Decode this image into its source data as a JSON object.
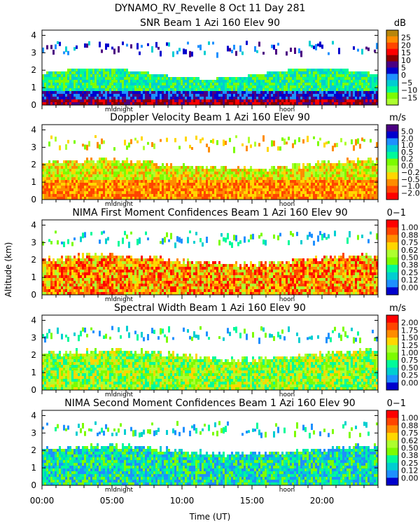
{
  "header": {
    "line1": "DYNAMO_RV_Revelle    8 Oct 11 Day 281"
  },
  "chart_data": {
    "type": "heatmap",
    "ylabel": "Altitude (km)",
    "xlabel": "Time (UT)",
    "x_ticks": [
      "00:00",
      "05:00",
      "10:00",
      "15:00",
      "20:00"
    ],
    "x_tick_values": [
      0,
      5,
      10,
      15,
      20
    ],
    "xlim": [
      0,
      24
    ],
    "day_markers": [
      {
        "label": "midnight",
        "hour": 5.5
      },
      {
        "label": "noon",
        "hour": 17.5
      }
    ],
    "panels": [
      {
        "title": "SNR Beam 1 Azi 160 Elev 90",
        "unit": "dB",
        "ylim": [
          0,
          4.3
        ],
        "y_ticks": [
          0,
          1,
          2,
          3,
          4
        ],
        "colorbar": [
          "25",
          "20",
          "15",
          "10",
          "5",
          "0",
          "−5",
          "−10",
          "−15"
        ],
        "colors": [
          "#b8860b",
          "#ff8c00",
          "#ff4500",
          "#ff0000",
          "#8b0000",
          "#4b0082",
          "#0000cd",
          "#1e90ff",
          "#00ced1",
          "#00fa9a",
          "#7cfc00",
          "#adff2f"
        ]
      },
      {
        "title": "Doppler Velocity Beam 1 Azi 160 Elev 90",
        "unit": "m/s",
        "ylim": [
          0,
          4.3
        ],
        "y_ticks": [
          0,
          1,
          2,
          3,
          4
        ],
        "colorbar": [
          "5.0",
          "2.0",
          "1.0",
          "0.5",
          "0.2",
          "0.0",
          "−0.2",
          "−0.5",
          "−1.0",
          "−2.0"
        ],
        "colors": [
          "#4b0082",
          "#0000cd",
          "#1e90ff",
          "#00ced1",
          "#00fa9a",
          "#7cfc00",
          "#adff2f",
          "#ffd700",
          "#ff8c00",
          "#ff4500",
          "#ff0000"
        ]
      },
      {
        "title": "NIMA First Moment Confidences Beam 1 Azi 160 Elev 90",
        "unit": "0−1",
        "ylim": [
          0,
          4.3
        ],
        "y_ticks": [
          0,
          1,
          2,
          3,
          4
        ],
        "colorbar": [
          "1.00",
          "0.88",
          "0.75",
          "0.62",
          "0.50",
          "0.38",
          "0.25",
          "0.12",
          "0.00"
        ],
        "colors": [
          "#ff0000",
          "#ff4500",
          "#ff8c00",
          "#ffd700",
          "#adff2f",
          "#7cfc00",
          "#00fa9a",
          "#00ced1",
          "#1e90ff",
          "#0000cd"
        ]
      },
      {
        "title": "Spectral Width Beam 1 Azi 160 Elev 90",
        "unit": "m/s",
        "ylim": [
          0,
          4.3
        ],
        "y_ticks": [
          0,
          1,
          2,
          3,
          4
        ],
        "colorbar": [
          "2.00",
          "1.75",
          "1.50",
          "1.25",
          "1.00",
          "0.75",
          "0.50",
          "0.25",
          "0.00"
        ],
        "colors": [
          "#ff0000",
          "#ff4500",
          "#ff8c00",
          "#ffd700",
          "#adff2f",
          "#7cfc00",
          "#00fa9a",
          "#00ced1",
          "#1e90ff",
          "#0000cd"
        ]
      },
      {
        "title": "NIMA Second Moment Confidences Beam 1 Azi 160 Elev 90",
        "unit": "0−1",
        "ylim": [
          0,
          4.3
        ],
        "y_ticks": [
          0,
          1,
          2,
          3,
          4
        ],
        "colorbar": [
          "1.00",
          "0.88",
          "0.75",
          "0.62",
          "0.50",
          "0.38",
          "0.25",
          "0.12",
          "0.00"
        ],
        "colors": [
          "#ff0000",
          "#ff4500",
          "#ff8c00",
          "#ffd700",
          "#adff2f",
          "#7cfc00",
          "#00fa9a",
          "#00ced1",
          "#1e90ff",
          "#0000cd"
        ]
      }
    ]
  }
}
